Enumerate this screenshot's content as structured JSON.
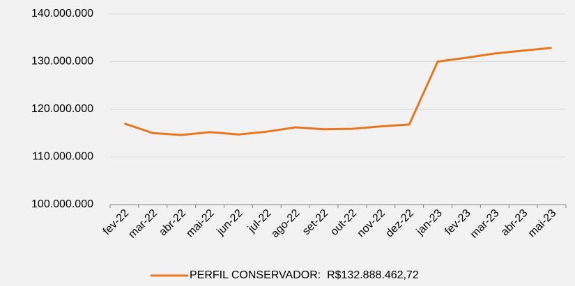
{
  "chart_data": {
    "type": "line",
    "categories": [
      "fev-22",
      "mar-22",
      "abr-22",
      "mai-22",
      "jun-22",
      "jul-22",
      "ago-22",
      "set-22",
      "out-22",
      "nov-22",
      "dez-22",
      "jan-23",
      "fev-23",
      "mar-23",
      "abr-23",
      "mai-23"
    ],
    "series": [
      {
        "name": "PERFIL CONSERVADOR:  R$132.888.462,72",
        "color": "#e8761e",
        "values": [
          117000000,
          115000000,
          114600000,
          115200000,
          114700000,
          115300000,
          116200000,
          115800000,
          115900000,
          116400000,
          116800000,
          130000000,
          130800000,
          131700000,
          132300000,
          132888462.72
        ]
      }
    ],
    "ylim": [
      100000000,
      140000000
    ],
    "yticks": [
      {
        "value": 100000000,
        "label": "100.000.000"
      },
      {
        "value": 110000000,
        "label": "110.000.000"
      },
      {
        "value": 120000000,
        "label": "120.000.000"
      },
      {
        "value": 130000000,
        "label": "130.000.000"
      },
      {
        "value": 140000000,
        "label": "140.000.000"
      }
    ],
    "grid": true,
    "legend": "bottom"
  }
}
